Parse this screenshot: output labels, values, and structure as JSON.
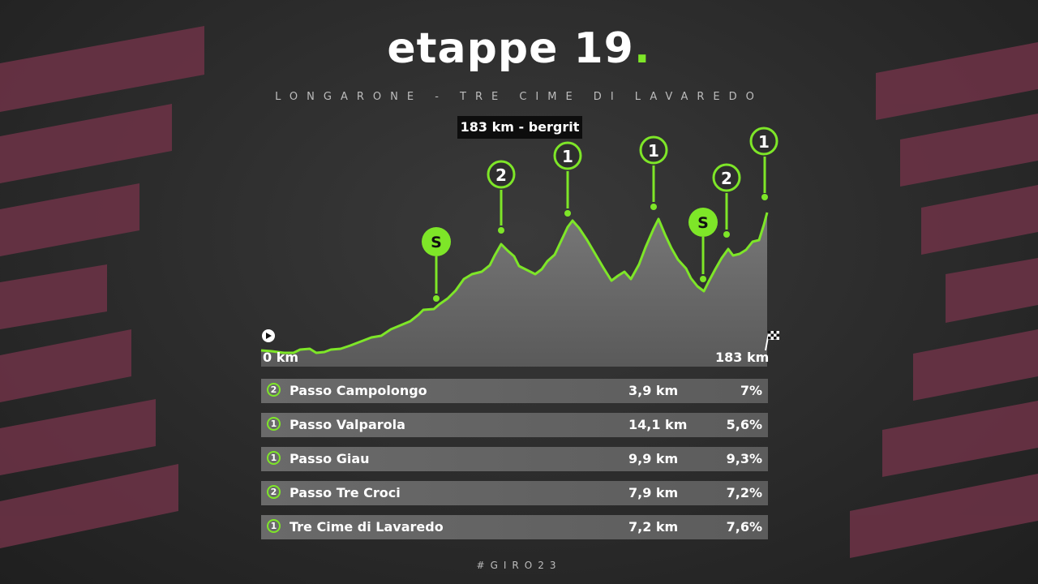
{
  "header": {
    "title": "etappe 19",
    "title_dot": ".",
    "route": "LONGARONE - TRE CIME DI LAVAREDO",
    "distance_badge": "183 km - bergrit"
  },
  "profile": {
    "start_label": "0 km",
    "end_label": "183 km",
    "start_icon": "play-icon",
    "finish_icon": "checkered-flag-icon",
    "markers": [
      {
        "label": "S",
        "type": "sprint"
      },
      {
        "label": "2",
        "type": "climb"
      },
      {
        "label": "1",
        "type": "climb"
      },
      {
        "label": "1",
        "type": "climb"
      },
      {
        "label": "S",
        "type": "sprint"
      },
      {
        "label": "2",
        "type": "climb"
      },
      {
        "label": "1",
        "type": "climb"
      }
    ]
  },
  "climbs": [
    {
      "category": "2",
      "name": "Passo Campolongo",
      "length": "3,9 km",
      "gradient": "7%"
    },
    {
      "category": "1",
      "name": "Passo Valparola",
      "length": "14,1  km",
      "gradient": "5,6%"
    },
    {
      "category": "1",
      "name": "Passo Giau",
      "length": "9,9 km",
      "gradient": "9,3%"
    },
    {
      "category": "2",
      "name": "Passo Tre Croci",
      "length": "7,9 km",
      "gradient": "7,2%"
    },
    {
      "category": "1",
      "name": "Tre Cime di Lavaredo",
      "length": "7,2 km",
      "gradient": "7,6%"
    }
  ],
  "footer": {
    "hashtag": "#GIRO23"
  },
  "colors": {
    "accent": "#7ee628",
    "stripe": "#6e3347",
    "area": "#6d6d6d"
  }
}
